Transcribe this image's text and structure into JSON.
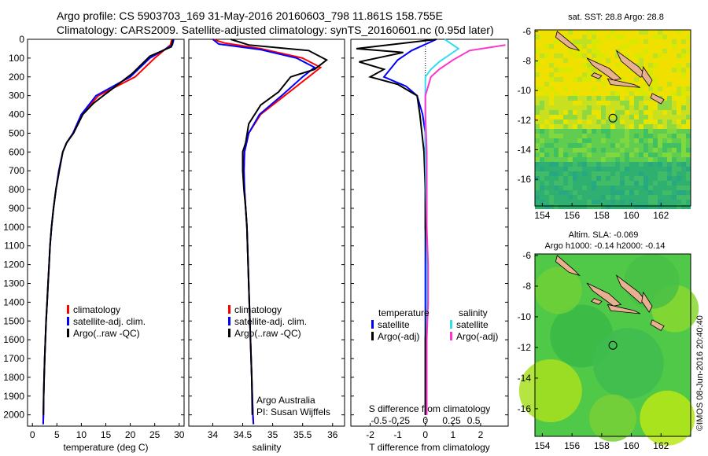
{
  "header": {
    "line1": "Argo profile: CS 5903703_169 31-May-2016 20160603_798 11.861S 158.755E",
    "line2": "Climatology: CARS2009. Satellite-adjusted climatology: synTS_20160601.nc (0.95d later)"
  },
  "colors": {
    "climatology": "#ff0000",
    "satellite": "#0000ff",
    "argo": "#000000",
    "sat_salinity": "#33ddee",
    "argo_salinity": "#ff33cc"
  },
  "side_text": "©IMOS 08-Jun-2016 20:40:40",
  "chart_data": [
    {
      "type": "line",
      "xlabel": "temperature (deg C)",
      "xlim": [
        -1,
        31
      ],
      "xticks": [
        "0",
        "5",
        "10",
        "15",
        "20",
        "25",
        "30"
      ],
      "ylim": [
        2060,
        0
      ],
      "yticks": [
        "0",
        "100",
        "200",
        "300",
        "400",
        "500",
        "600",
        "700",
        "800",
        "900",
        "1000",
        "1100",
        "1200",
        "1300",
        "1400",
        "1500",
        "1600",
        "1700",
        "1800",
        "1900",
        "2000"
      ],
      "legend": [
        "climatology",
        "satellite-adj. clim.",
        "Argo(..raw -QC)"
      ],
      "series": [
        {
          "name": "climatology",
          "color": "#ff0000",
          "points": [
            [
              28.5,
              0
            ],
            [
              28.2,
              30
            ],
            [
              25,
              100
            ],
            [
              21,
              200
            ],
            [
              13.5,
              300
            ],
            [
              10,
              400
            ],
            [
              8.3,
              500
            ],
            [
              7,
              550
            ],
            [
              6.2,
              600
            ],
            [
              5.4,
              700
            ],
            [
              4.8,
              800
            ],
            [
              4.3,
              900
            ],
            [
              3.9,
              1000
            ],
            [
              3.6,
              1100
            ],
            [
              3.4,
              1200
            ],
            [
              3.2,
              1300
            ],
            [
              3.0,
              1400
            ],
            [
              2.8,
              1500
            ],
            [
              2.65,
              1600
            ],
            [
              2.5,
              1700
            ],
            [
              2.4,
              1800
            ],
            [
              2.3,
              1900
            ],
            [
              2.25,
              2000
            ],
            [
              2.2,
              2050
            ]
          ]
        },
        {
          "name": "satellite-adj. clim.",
          "color": "#0000ff",
          "points": [
            [
              28.9,
              0
            ],
            [
              28.6,
              30
            ],
            [
              24,
              100
            ],
            [
              20,
              200
            ],
            [
              13,
              300
            ],
            [
              10,
              400
            ],
            [
              8.3,
              500
            ],
            [
              7,
              550
            ],
            [
              6.2,
              600
            ],
            [
              5.4,
              700
            ],
            [
              4.8,
              800
            ],
            [
              4.3,
              900
            ],
            [
              3.9,
              1000
            ],
            [
              3.6,
              1100
            ],
            [
              3.4,
              1200
            ],
            [
              3.2,
              1300
            ],
            [
              3.0,
              1400
            ],
            [
              2.8,
              1500
            ],
            [
              2.65,
              1600
            ],
            [
              2.5,
              1700
            ],
            [
              2.4,
              1800
            ],
            [
              2.3,
              1900
            ],
            [
              2.25,
              2000
            ],
            [
              2.2,
              2050
            ]
          ]
        },
        {
          "name": "Argo(..raw -QC)",
          "color": "#000000",
          "points": [
            [
              28.7,
              0
            ],
            [
              28.4,
              40
            ],
            [
              24,
              90
            ],
            [
              20.5,
              180
            ],
            [
              15.5,
              280
            ],
            [
              12.5,
              340
            ],
            [
              10.3,
              400
            ],
            [
              8.4,
              500
            ],
            [
              7,
              550
            ],
            [
              6.2,
              600
            ],
            [
              5.5,
              700
            ],
            [
              4.8,
              800
            ],
            [
              4.3,
              900
            ],
            [
              3.9,
              1000
            ],
            [
              3.6,
              1100
            ],
            [
              3.4,
              1200
            ],
            [
              3.2,
              1300
            ],
            [
              3.0,
              1400
            ],
            [
              2.8,
              1500
            ],
            [
              2.65,
              1600
            ],
            [
              2.5,
              1700
            ],
            [
              2.4,
              1800
            ],
            [
              2.3,
              1900
            ],
            [
              2.25,
              2000
            ]
          ]
        }
      ]
    },
    {
      "type": "line",
      "xlabel": "salinity",
      "xlim": [
        33.6,
        36.2
      ],
      "xticks": [
        "34",
        "34.5",
        "35",
        "35.5",
        "36"
      ],
      "ylim": [
        2060,
        0
      ],
      "legend": [
        "climatology",
        "satellite-adj. clim.",
        "Argo(..raw -QC)"
      ],
      "annotations": [
        "Argo Australia",
        "PI: Susan Wijffels"
      ],
      "series": [
        {
          "name": "climatology",
          "color": "#ff0000",
          "points": [
            [
              34.0,
              0
            ],
            [
              34.2,
              20
            ],
            [
              34.8,
              50
            ],
            [
              35.5,
              100
            ],
            [
              35.8,
              150
            ],
            [
              35.6,
              200
            ],
            [
              35.2,
              300
            ],
            [
              34.8,
              400
            ],
            [
              34.6,
              500
            ],
            [
              34.53,
              600
            ],
            [
              34.52,
              700
            ],
            [
              34.53,
              800
            ],
            [
              34.55,
              900
            ],
            [
              34.57,
              1000
            ],
            [
              34.59,
              1200
            ],
            [
              34.61,
              1400
            ],
            [
              34.63,
              1600
            ],
            [
              34.65,
              1800
            ],
            [
              34.67,
              2000
            ],
            [
              34.68,
              2050
            ]
          ]
        },
        {
          "name": "satellite-adj. clim.",
          "color": "#0000ff",
          "points": [
            [
              34.0,
              0
            ],
            [
              34.1,
              25
            ],
            [
              34.8,
              55
            ],
            [
              35.4,
              100
            ],
            [
              35.7,
              150
            ],
            [
              35.5,
              200
            ],
            [
              35.15,
              300
            ],
            [
              34.78,
              400
            ],
            [
              34.6,
              500
            ],
            [
              34.53,
              600
            ],
            [
              34.52,
              700
            ],
            [
              34.53,
              800
            ],
            [
              34.55,
              900
            ],
            [
              34.57,
              1000
            ],
            [
              34.59,
              1200
            ],
            [
              34.61,
              1400
            ],
            [
              34.63,
              1600
            ],
            [
              34.65,
              1800
            ],
            [
              34.67,
              2000
            ],
            [
              34.68,
              2050
            ]
          ]
        },
        {
          "name": "Argo(..raw -QC)",
          "color": "#000000",
          "points": [
            [
              34.3,
              0
            ],
            [
              34.6,
              30
            ],
            [
              35.6,
              60
            ],
            [
              35.9,
              110
            ],
            [
              35.7,
              160
            ],
            [
              35.3,
              200
            ],
            [
              35.1,
              280
            ],
            [
              34.8,
              350
            ],
            [
              34.6,
              450
            ],
            [
              34.55,
              550
            ],
            [
              34.5,
              600
            ],
            [
              34.5,
              700
            ],
            [
              34.52,
              800
            ],
            [
              34.55,
              900
            ],
            [
              34.57,
              1000
            ],
            [
              34.59,
              1200
            ],
            [
              34.61,
              1400
            ],
            [
              34.63,
              1600
            ],
            [
              34.65,
              1800
            ],
            [
              34.66,
              2000
            ]
          ]
        }
      ]
    },
    {
      "type": "line",
      "xlabel": "T difference from climatology",
      "xlabel_top": "S difference from climatology",
      "xlim": [
        -2.7,
        3
      ],
      "xticks": [
        "-2",
        "-1",
        "0",
        "1",
        "2"
      ],
      "xticks_top": [
        "-0.5",
        "-0.25",
        "0",
        "0.25",
        "0.5"
      ],
      "ylim": [
        2060,
        0
      ],
      "legend_headers": [
        "temperature",
        "salinity"
      ],
      "legend": [
        "satellite",
        "Argo(-adj)",
        "satellite",
        "Argo(-adj)"
      ],
      "series": [
        {
          "name": "satellite",
          "color": "#0000ff",
          "points": [
            [
              0.4,
              0
            ],
            [
              -0.5,
              60
            ],
            [
              -1.0,
              110
            ],
            [
              -1.5,
              200
            ],
            [
              -0.7,
              250
            ],
            [
              -0.3,
              300
            ],
            [
              -0.2,
              350
            ],
            [
              -0.1,
              400
            ],
            [
              0,
              500
            ],
            [
              0,
              700
            ],
            [
              0,
              1000
            ],
            [
              0,
              1500
            ],
            [
              0,
              2000
            ]
          ]
        },
        {
          "name": "Argo(-adj)",
          "color": "#000000",
          "points": [
            [
              0.4,
              0
            ],
            [
              -2.5,
              50
            ],
            [
              -0.8,
              70
            ],
            [
              -2.4,
              120
            ],
            [
              -1.5,
              160
            ],
            [
              -2.0,
              200
            ],
            [
              -1.0,
              240
            ],
            [
              -0.3,
              300
            ],
            [
              -0.2,
              400
            ],
            [
              -0.05,
              600
            ],
            [
              0,
              800
            ],
            [
              0,
              1000
            ],
            [
              0.05,
              1200
            ],
            [
              0.05,
              1400
            ],
            [
              0,
              1600
            ],
            [
              0,
              1800
            ],
            [
              0,
              2000
            ]
          ]
        },
        {
          "name": "satellite",
          "color": "#33ddee",
          "points": [
            [
              0.7,
              0
            ],
            [
              1.2,
              50
            ],
            [
              0.5,
              120
            ],
            [
              0.2,
              160
            ],
            [
              0,
              200
            ],
            [
              0,
              300
            ],
            [
              0,
              400
            ],
            [
              0,
              600
            ],
            [
              0.05,
              1000
            ],
            [
              0.05,
              1500
            ],
            [
              0.05,
              2000
            ]
          ]
        },
        {
          "name": "Argo(-adj)",
          "color": "#ff33cc",
          "points": [
            [
              2.9,
              30
            ],
            [
              1.6,
              60
            ],
            [
              1.0,
              110
            ],
            [
              0.5,
              160
            ],
            [
              0.2,
              200
            ],
            [
              0,
              300
            ],
            [
              0,
              400
            ],
            [
              0.05,
              600
            ],
            [
              0.05,
              800
            ],
            [
              0.05,
              1000
            ],
            [
              0.1,
              1200
            ],
            [
              0.1,
              1400
            ],
            [
              0.05,
              1600
            ],
            [
              0.05,
              1800
            ],
            [
              0.05,
              2000
            ]
          ]
        }
      ]
    },
    {
      "type": "heatmap",
      "title": "sat. SST: 28.8  Argo: 28.8",
      "xticks": [
        "154",
        "156",
        "158",
        "160",
        "162"
      ],
      "yticks": [
        "-6",
        "-8",
        "-10",
        "-12",
        "-14",
        "-16"
      ],
      "xlim": [
        153.5,
        164
      ],
      "ylim": [
        -17.8,
        -5.9
      ],
      "marker": {
        "lon": 158.755,
        "lat": -11.861
      }
    },
    {
      "type": "heatmap",
      "title": "Altim. SLA: -0.069",
      "subtitle": "Argo h1000: -0.14 h2000: -0.14",
      "xticks": [
        "154",
        "156",
        "158",
        "160",
        "162"
      ],
      "yticks": [
        "-6",
        "-8",
        "-10",
        "-12",
        "-14",
        "-16"
      ],
      "xlim": [
        153.5,
        164
      ],
      "ylim": [
        -17.8,
        -5.9
      ],
      "marker": {
        "lon": 158.755,
        "lat": -11.861
      }
    }
  ]
}
